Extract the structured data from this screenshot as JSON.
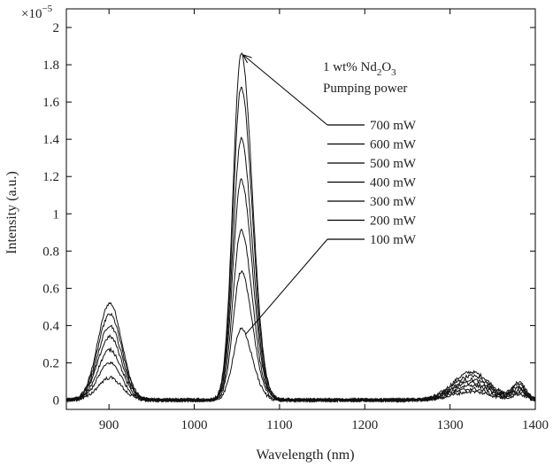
{
  "chart_data": {
    "type": "line",
    "xlabel": "Wavelength (nm)",
    "ylabel": "Intensity (a.u.)",
    "multiplier": "×10",
    "multiplier_exp": "−5",
    "xlim": [
      850,
      1400
    ],
    "ylim": [
      -0.05,
      2.1
    ],
    "xticks": [
      900,
      1000,
      1100,
      1200,
      1300,
      1400
    ],
    "yticks": [
      0,
      0.2,
      0.4,
      0.6,
      0.8,
      1,
      1.2,
      1.4,
      1.6,
      1.8,
      2
    ],
    "ytick_labels": [
      "0",
      "0.2",
      "0.4",
      "0.6",
      "0.8",
      "1",
      "1.2",
      "1.4",
      "1.6",
      "1.8",
      "2"
    ],
    "legend": {
      "line1_prefix": "1 wt%  Nd",
      "line1_sub1": "2",
      "line1_mid": "O",
      "line1_sub2": "3",
      "line2": "Pumping power"
    },
    "series": [
      {
        "name": "700 mW",
        "peaks": {
          "p900": 0.52,
          "p1055": 1.86,
          "p1325": 0.15,
          "p1380": 0.09
        }
      },
      {
        "name": "600 mW",
        "peaks": {
          "p900": 0.46,
          "p1055": 1.68,
          "p1325": 0.13,
          "p1380": 0.08
        }
      },
      {
        "name": "500 mW",
        "peaks": {
          "p900": 0.4,
          "p1055": 1.4,
          "p1325": 0.11,
          "p1380": 0.07
        }
      },
      {
        "name": "400 mW",
        "peaks": {
          "p900": 0.34,
          "p1055": 1.18,
          "p1325": 0.095,
          "p1380": 0.06
        }
      },
      {
        "name": "300 mW",
        "peaks": {
          "p900": 0.27,
          "p1055": 0.91,
          "p1325": 0.08,
          "p1380": 0.05
        }
      },
      {
        "name": "200 mW",
        "peaks": {
          "p900": 0.2,
          "p1055": 0.69,
          "p1325": 0.06,
          "p1380": 0.04
        }
      },
      {
        "name": "100 mW",
        "peaks": {
          "p900": 0.12,
          "p1055": 0.38,
          "p1325": 0.045,
          "p1380": 0.03
        }
      }
    ]
  }
}
